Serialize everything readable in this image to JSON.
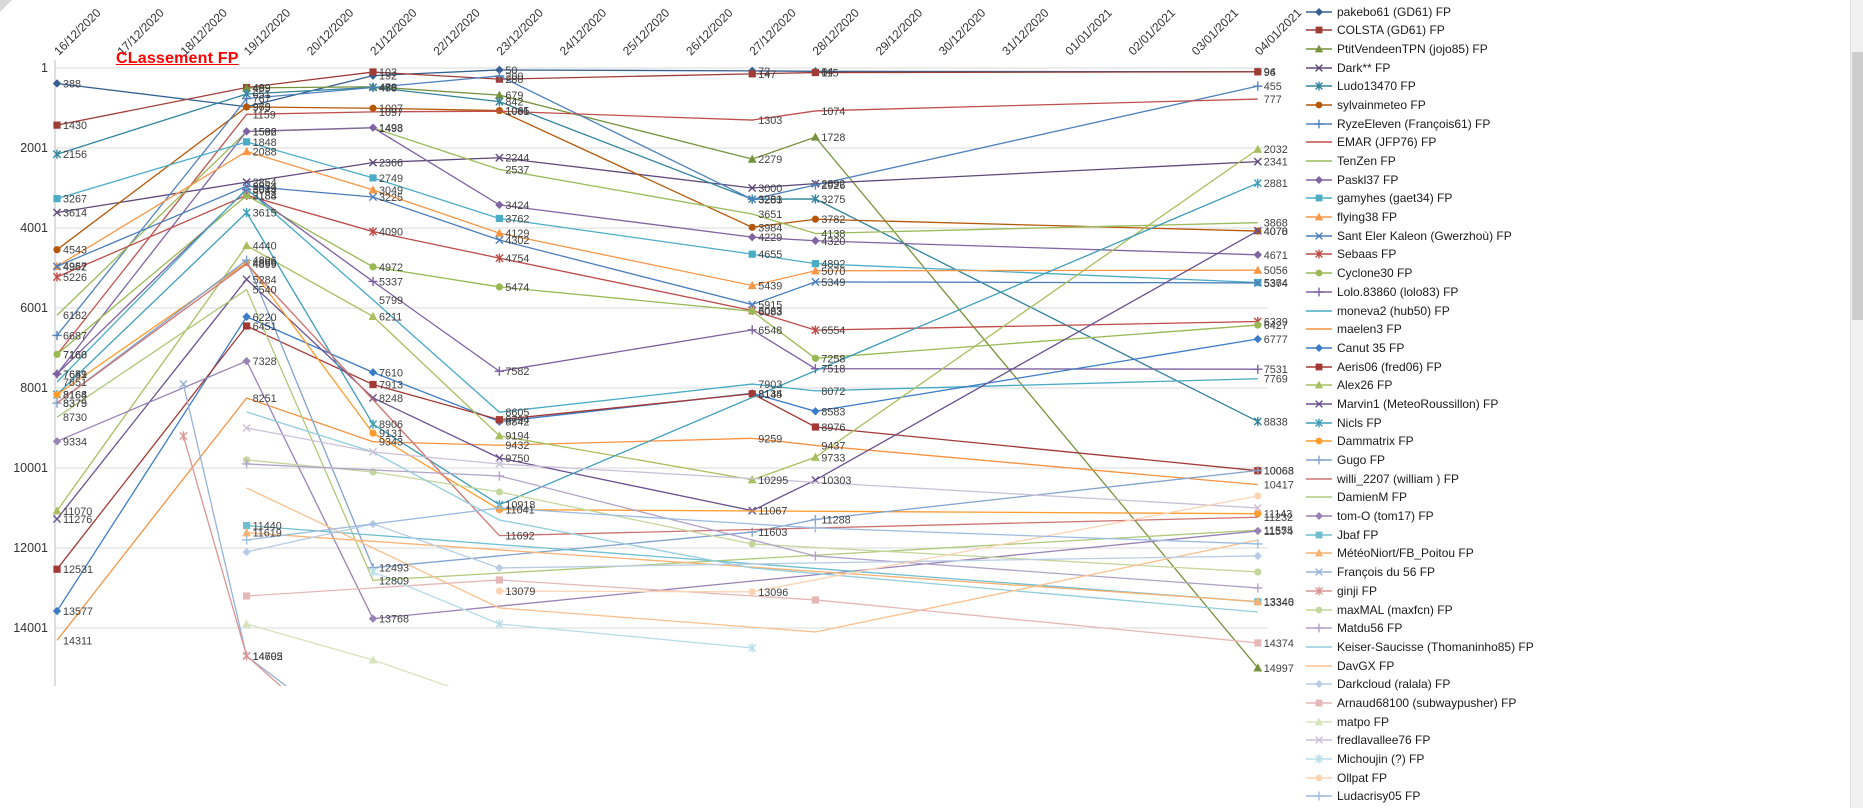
{
  "title": "CLassement FP",
  "title_color": "#FF0000",
  "scrollbar": {
    "present": true
  },
  "chart_data": {
    "type": "line",
    "title": "CLassement FP",
    "xlabel": "",
    "ylabel": "",
    "x_labels": [
      "16/12/2020",
      "17/12/2020",
      "18/12/2020",
      "19/12/2020",
      "20/12/2020",
      "21/12/2020",
      "22/12/2020",
      "23/12/2020",
      "24/12/2020",
      "25/12/2020",
      "26/12/2020",
      "27/12/2020",
      "28/12/2020",
      "29/12/2020",
      "30/12/2020",
      "31/12/2020",
      "01/01/2021",
      "02/01/2021",
      "03/01/2021",
      "04/01/2021"
    ],
    "y_ticks": [
      1,
      2001,
      4001,
      6001,
      8001,
      10001,
      12001,
      14001
    ],
    "y_axis_inverted": true,
    "ylim": [
      1,
      15500
    ],
    "grid": true,
    "legend_position": "right",
    "grid_color": "#D9D9D9",
    "axis_color": "#BFBFBF",
    "label_color": "#404040",
    "series": [
      {
        "name": "pakebo61 (GD61) FP",
        "color": "#366092",
        "marker": "diamond",
        "values": {
          "0": 388,
          "3": 969,
          "5": 192,
          "7": 50,
          "11": 72,
          "12": 84,
          "19": 94
        },
        "labels": "all"
      },
      {
        "name": "COLSTA (GD61) FP",
        "color": "#9E3D38",
        "marker": "square",
        "values": {
          "0": 1430,
          "3": 489,
          "5": 103,
          "7": 280,
          "11": 147,
          "12": 115,
          "19": 96
        },
        "labels": "all"
      },
      {
        "name": "PtitVendeenTPN (jojo85) FP",
        "color": "#76923C",
        "marker": "triangle",
        "values": {
          "3": 499,
          "5": 470,
          "7": 679,
          "11": 2279,
          "12": 1728,
          "19": 14997
        },
        "labels": "all"
      },
      {
        "name": "Dark** FP",
        "color": "#5F497A",
        "marker": "x",
        "values": {
          "0": 3614,
          "3": 2854,
          "5": 2366,
          "7": 2244,
          "11": 3000,
          "12": 2892,
          "19": 2341
        },
        "labels": "all"
      },
      {
        "name": "Ludo13470 FP",
        "color": "#31849B",
        "marker": "star",
        "values": {
          "0": 2156,
          "3": 651,
          "5": 485,
          "7": 842,
          "11": 3281,
          "12": 3275,
          "19": 8838
        },
        "labels": "all"
      },
      {
        "name": "sylvainmeteo FP",
        "color": "#B65708",
        "marker": "circle",
        "values": {
          "0": 4543,
          "3": 975,
          "5": 1007,
          "7": 1065,
          "11": 3984,
          "12": 3782,
          "19": 4078
        },
        "labels": "all"
      },
      {
        "name": "RyzeEleven (François61) FP",
        "color": "#4F81BD",
        "marker": "plus",
        "values": {
          "0": 6687,
          "3": 767,
          "5": 488,
          "7": 200,
          "11": 3283,
          "12": 2926,
          "19": 455
        },
        "labels": "all"
      },
      {
        "name": "EMAR (JFP76) FP",
        "color": "#C0504D",
        "marker": "none",
        "values": {
          "0": 7166,
          "3": 1159,
          "5": 1097,
          "7": 1081,
          "11": 1303,
          "12": 1074,
          "19": 777
        },
        "labels": "all"
      },
      {
        "name": "TenZen  FP",
        "color": "#9BBB59",
        "marker": "none",
        "values": {
          "0": 6182,
          "3": 1592,
          "5": 1498,
          "7": 2537,
          "11": 3651,
          "12": 4138,
          "19": 3868
        },
        "labels": "all"
      },
      {
        "name": "Paskl37 FP",
        "color": "#8064A2",
        "marker": "diamond",
        "values": {
          "0": 7649,
          "3": 1586,
          "5": 1493,
          "7": 3424,
          "11": 4229,
          "12": 4320,
          "19": 4671
        },
        "labels": "all"
      },
      {
        "name": "gamyhes (gaet34) FP",
        "color": "#4BACC6",
        "marker": "square",
        "values": {
          "0": 3267,
          "3": 1848,
          "5": 2749,
          "7": 3762,
          "11": 4655,
          "12": 4892,
          "19": 5364
        },
        "labels": "all"
      },
      {
        "name": "flying38 FP",
        "color": "#F79646",
        "marker": "triangle",
        "values": {
          "0": 4957,
          "3": 2088,
          "5": 3049,
          "7": 4129,
          "11": 5439,
          "12": 5070,
          "19": 5056
        },
        "labels": "all"
      },
      {
        "name": "Sant Eler Kaleon (Gwerzhoù) FP",
        "color": "#4A7EBB",
        "marker": "x",
        "values": {
          "0": 4962,
          "3": 2954,
          "5": 3225,
          "7": 4302,
          "11": 5915,
          "12": 5349,
          "19": 5374
        },
        "labels": "all"
      },
      {
        "name": "Sebaas FP",
        "color": "#BE4B48",
        "marker": "star",
        "values": {
          "0": 5226,
          "3": 3184,
          "5": 4090,
          "7": 4754,
          "11": 6063,
          "12": 6554,
          "19": 6339
        },
        "labels": "all"
      },
      {
        "name": "Cyclone30  FP",
        "color": "#98B954",
        "marker": "circle",
        "values": {
          "0": 7160,
          "3": 3188,
          "5": 4972,
          "7": 5474,
          "11": 6083,
          "12": 7258,
          "19": 6427
        },
        "labels": "all"
      },
      {
        "name": "Lolo.83860 (lolo83) FP",
        "color": "#7D60A0",
        "marker": "plus",
        "values": {
          "0": 7651,
          "3": 3044,
          "5": 5337,
          "7": 7582,
          "11": 6548,
          "12": 7518,
          "19": 7531
        },
        "labels": "all"
      },
      {
        "name": "moneva2 (hub50) FP",
        "color": "#46AAC5",
        "marker": "none",
        "values": {
          "0": 7851,
          "3": 3019,
          "5": 5799,
          "7": 8605,
          "11": 7903,
          "12": 8072,
          "19": 7769
        },
        "labels": "all"
      },
      {
        "name": "maelen3  FP",
        "color": "#F69240",
        "marker": "none",
        "values": {
          "0": 14311,
          "3": 8251,
          "5": 9343,
          "7": 9432,
          "11": 9259,
          "12": 9437,
          "19": 10417
        },
        "labels": "all"
      },
      {
        "name": "Canut 35  FP",
        "color": "#3C7BC8",
        "marker": "diamond",
        "values": {
          "0": 13577,
          "3": 6220,
          "5": 7610,
          "7": 8842,
          "11": 8134,
          "12": 8583,
          "19": 6777
        },
        "labels": "all"
      },
      {
        "name": "Aeris06 (fred06) FP",
        "color": "#A33835",
        "marker": "square",
        "values": {
          "0": 12531,
          "3": 6451,
          "5": 7913,
          "7": 8794,
          "11": 8145,
          "12": 8976,
          "19": 10068
        },
        "labels": "all"
      },
      {
        "name": "Alex26 FP",
        "color": "#A8BF5F",
        "marker": "triangle",
        "values": {
          "0": 11070,
          "3": 4440,
          "5": 6211,
          "7": 9194,
          "11": 10295,
          "12": 9733,
          "19": 2032
        },
        "labels": "all"
      },
      {
        "name": "Marvin1 (MeteoRoussillon) FP",
        "color": "#69518F",
        "marker": "x",
        "values": {
          "0": 11276,
          "3": 5284,
          "5": 8248,
          "7": 9750,
          "11": 11067,
          "12": 10303,
          "19": 4070
        },
        "labels": "all"
      },
      {
        "name": "Nicls FP",
        "color": "#3D9DB8",
        "marker": "star",
        "values": {
          "0": 8164,
          "3": 3615,
          "5": 8906,
          "7": 10918,
          "19": 2881
        },
        "labels": "all"
      },
      {
        "name": "Dammatrix FP",
        "color": "#FF9C2E",
        "marker": "circle",
        "values": {
          "0": 8168,
          "3": 4866,
          "5": 9131,
          "7": 11041,
          "19": 11143
        },
        "labels": "all"
      },
      {
        "name": "Gugo FP",
        "color": "#81A3CD",
        "marker": "plus",
        "values": {
          "0": 8379,
          "3": 4806,
          "5": 12493,
          "11": 11603,
          "12": 11288,
          "19": 10063
        },
        "labels": "all"
      },
      {
        "name": "willi_2207 (william ) FP",
        "color": "#CD7371",
        "marker": "none",
        "values": {
          "0": 8375,
          "3": 4899,
          "7": 11692,
          "19": 11232
        },
        "labels": "all"
      },
      {
        "name": "DamienM FP",
        "color": "#AFC97A",
        "marker": "none",
        "values": {
          "0": 8730,
          "3": 5540,
          "5": 12809,
          "19": 11555
        },
        "labels": "all"
      },
      {
        "name": "tom-O (tom17) FP",
        "color": "#9983B5",
        "marker": "diamond",
        "values": {
          "0": 9334,
          "3": 7328,
          "5": 13768,
          "19": 11574
        },
        "labels": "all"
      },
      {
        "name": "Jbaf FP",
        "color": "#6FBDD1",
        "marker": "square",
        "values": {
          "3": 11440,
          "19": 13346
        },
        "labels": "all"
      },
      {
        "name": "MétéoNiort/FB_Poitou FP",
        "color": "#F9B271",
        "marker": "triangle",
        "values": {
          "3": 11619,
          "19": 13340
        },
        "labels": "all"
      },
      {
        "name": "François du 56 FP",
        "color": "#95B3D7",
        "marker": "x",
        "values": {
          "2": 7900,
          "3": 14702,
          "4": 15900
        },
        "labels": [
          3
        ]
      },
      {
        "name": "ginji FP",
        "color": "#D99694",
        "marker": "star",
        "values": {
          "2": 9200,
          "3": 14695,
          "4": 16100
        },
        "labels": [
          3
        ]
      },
      {
        "name": "maxMAL (maxfcn) FP",
        "color": "#C3D69B",
        "marker": "circle",
        "values": {
          "3": 9800,
          "5": 10100,
          "7": 10600,
          "11": 11900,
          "19": 12600
        },
        "labels": []
      },
      {
        "name": "Matdu56 FP",
        "color": "#B2A2C7",
        "marker": "plus",
        "values": {
          "3": 9900,
          "7": 10200,
          "12": 12200,
          "19": 13000
        },
        "labels": []
      },
      {
        "name": "Keiser-Saucisse (Thomaninho85) FP",
        "color": "#92CDDC",
        "marker": "none",
        "values": {
          "3": 8600,
          "5": 9600,
          "7": 11300,
          "11": 12500,
          "19": 13600
        },
        "labels": []
      },
      {
        "name": "DavGX FP",
        "color": "#FAC08F",
        "marker": "none",
        "values": {
          "3": 10500,
          "7": 13500,
          "12": 14100,
          "19": 11800
        },
        "labels": []
      },
      {
        "name": "Darkcloud (ralala) FP",
        "color": "#B8CCE4",
        "marker": "diamond",
        "values": {
          "3": 12100,
          "5": 11400,
          "7": 12500,
          "19": 12200
        },
        "labels": []
      },
      {
        "name": "Arnaud68100 (subwaypusher) FP",
        "color": "#E5B8B7",
        "marker": "square",
        "values": {
          "3": 13200,
          "7": 12800,
          "12": 13300,
          "19": 14374
        },
        "labels": [
          19
        ]
      },
      {
        "name": "matpo FP",
        "color": "#D6E3BC",
        "marker": "triangle",
        "values": {
          "3": 13900,
          "5": 14800,
          "7": 15900
        },
        "labels": []
      },
      {
        "name": "fredlavallee76 FP",
        "color": "#CCC0D9",
        "marker": "x",
        "values": {
          "3": 9000,
          "5": 9600,
          "7": 9900,
          "19": 11000
        },
        "labels": []
      },
      {
        "name": "Michoujin (?) FP",
        "color": "#B6DDE8",
        "marker": "star",
        "values": {
          "5": 12600,
          "7": 13900,
          "11": 14500
        },
        "labels": []
      },
      {
        "name": "Ollpat FP",
        "color": "#FBD4B4",
        "marker": "circle",
        "values": {
          "7": 13079,
          "11": 13096,
          "19": 10700
        },
        "labels": [
          7,
          11
        ]
      },
      {
        "name": "Ludacrisy05 FP",
        "color": "#9CBCE0",
        "marker": "plus",
        "values": {
          "3": 11800,
          "7": 11000,
          "12": 11500,
          "19": 11900
        },
        "labels": []
      }
    ]
  }
}
